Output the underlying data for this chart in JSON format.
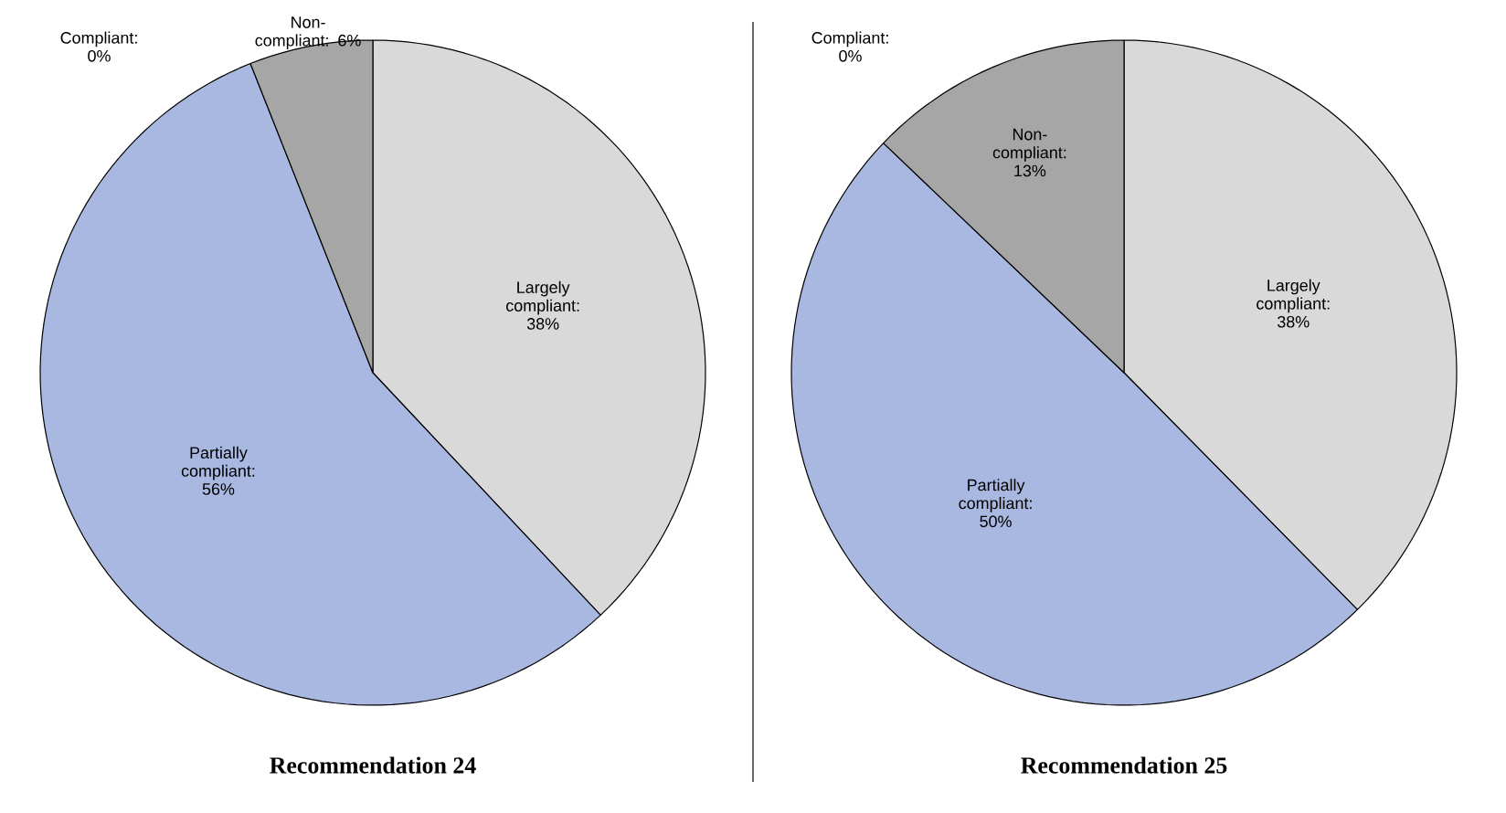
{
  "chart_data": [
    {
      "type": "pie",
      "title": "Recommendation 24",
      "categories": [
        "Largely compliant",
        "Partially compliant",
        "Compliant",
        "Non-compliant"
      ],
      "values": [
        38,
        56,
        0,
        6
      ],
      "value_labels": [
        ": 38%",
        ": 56%",
        ": 0%",
        ": 6%"
      ],
      "colors": [
        "#d9d9d9",
        "#a9b8e0",
        "#ffffff",
        "#a6a6a6"
      ]
    },
    {
      "type": "pie",
      "title": "Recommendation 25",
      "categories": [
        "Largely compliant",
        "Partially compliant",
        "Compliant",
        "Non-compliant"
      ],
      "values": [
        38,
        50,
        0,
        13
      ],
      "value_labels": [
        ": 38%",
        ": 50%",
        ": 0%",
        ": 13%"
      ],
      "colors": [
        "#d9d9d9",
        "#a9b8e0",
        "#ffffff",
        "#a6a6a6"
      ]
    }
  ]
}
